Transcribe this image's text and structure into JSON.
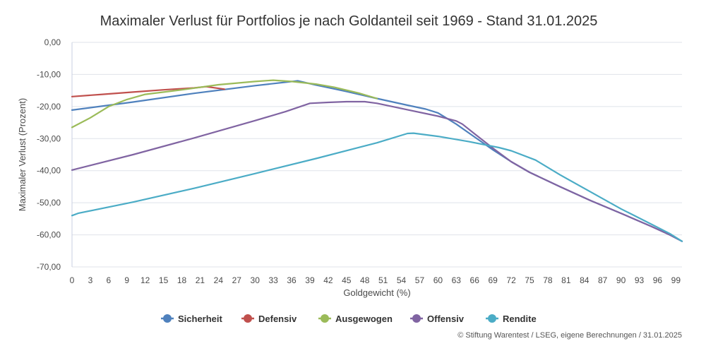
{
  "chart_data": {
    "type": "line",
    "title": "Maximaler Verlust für Portfolios je nach Goldanteil seit 1969 - Stand 31.01.2025",
    "xlabel": "Goldgewicht (%)",
    "ylabel": "Maximaler Verlust (Prozent)",
    "xlim": [
      0,
      100
    ],
    "ylim": [
      -70,
      0
    ],
    "x_ticks": [
      0,
      3,
      6,
      9,
      12,
      15,
      18,
      21,
      24,
      27,
      30,
      33,
      36,
      39,
      42,
      45,
      48,
      51,
      54,
      57,
      60,
      63,
      66,
      69,
      72,
      75,
      78,
      81,
      84,
      87,
      90,
      93,
      96,
      99
    ],
    "y_ticks": [
      0,
      -10,
      -20,
      -30,
      -40,
      -50,
      -60,
      -70
    ],
    "y_tick_labels": [
      "0,00",
      "-10,00",
      "-20,00",
      "-30,00",
      "-40,00",
      "-50,00",
      "-60,00",
      "-70,00"
    ],
    "grid": true,
    "legend_position": "bottom",
    "series": [
      {
        "name": "Sicherheit",
        "color": "#4f81bd",
        "points": [
          [
            0,
            -21.1
          ],
          [
            10,
            -18.6
          ],
          [
            20,
            -15.9
          ],
          [
            30,
            -13.5
          ],
          [
            37,
            -12.0
          ],
          [
            40,
            -13.3
          ],
          [
            45,
            -15.3
          ],
          [
            50,
            -17.5
          ],
          [
            55,
            -19.6
          ],
          [
            58,
            -20.8
          ],
          [
            60,
            -22.0
          ],
          [
            63,
            -25.5
          ],
          [
            66,
            -29.5
          ],
          [
            69,
            -33.5
          ],
          [
            72,
            -37.2
          ],
          [
            75,
            -40.5
          ],
          [
            80,
            -45.0
          ],
          [
            85,
            -49.3
          ],
          [
            90,
            -53.3
          ],
          [
            95,
            -57.4
          ],
          [
            98,
            -60.0
          ],
          [
            100,
            -62.0
          ]
        ]
      },
      {
        "name": "Defensiv",
        "color": "#c0504d",
        "points": [
          [
            0,
            -16.9
          ],
          [
            5,
            -16.2
          ],
          [
            10,
            -15.5
          ],
          [
            15,
            -14.8
          ],
          [
            20,
            -14.2
          ],
          [
            22,
            -13.8
          ],
          [
            25,
            -14.6
          ]
        ]
      },
      {
        "name": "Ausgewogen",
        "color": "#9bbb59",
        "points": [
          [
            0,
            -26.5
          ],
          [
            3,
            -23.5
          ],
          [
            6,
            -20.0
          ],
          [
            9,
            -17.8
          ],
          [
            12,
            -16.2
          ],
          [
            18,
            -14.8
          ],
          [
            24,
            -13.2
          ],
          [
            30,
            -12.2
          ],
          [
            33,
            -11.8
          ],
          [
            36,
            -12.2
          ],
          [
            40,
            -13.0
          ],
          [
            43,
            -14.0
          ],
          [
            47,
            -15.8
          ],
          [
            50,
            -17.5
          ]
        ]
      },
      {
        "name": "Offensiv",
        "color": "#8064a2",
        "points": [
          [
            0,
            -39.8
          ],
          [
            10,
            -35.0
          ],
          [
            20,
            -29.8
          ],
          [
            30,
            -24.4
          ],
          [
            35,
            -21.6
          ],
          [
            39,
            -19.0
          ],
          [
            42,
            -18.7
          ],
          [
            45,
            -18.5
          ],
          [
            48,
            -18.5
          ],
          [
            50,
            -19.0
          ],
          [
            55,
            -21.0
          ],
          [
            60,
            -23.0
          ],
          [
            63,
            -24.5
          ],
          [
            64,
            -25.5
          ],
          [
            66,
            -28.5
          ],
          [
            69,
            -33.0
          ],
          [
            72,
            -37.2
          ],
          [
            75,
            -40.5
          ],
          [
            80,
            -45.0
          ],
          [
            85,
            -49.3
          ],
          [
            90,
            -53.3
          ],
          [
            95,
            -57.4
          ],
          [
            98,
            -60.0
          ],
          [
            100,
            -62.0
          ]
        ]
      },
      {
        "name": "Rendite",
        "color": "#4bacc6",
        "points": [
          [
            0,
            -54.0
          ],
          [
            1,
            -53.3
          ],
          [
            10,
            -49.8
          ],
          [
            20,
            -45.5
          ],
          [
            30,
            -40.9
          ],
          [
            40,
            -36.2
          ],
          [
            50,
            -31.3
          ],
          [
            55,
            -28.4
          ],
          [
            56,
            -28.3
          ],
          [
            60,
            -29.3
          ],
          [
            65,
            -30.9
          ],
          [
            70,
            -32.8
          ],
          [
            72,
            -33.8
          ],
          [
            76,
            -36.7
          ],
          [
            80,
            -41.3
          ],
          [
            85,
            -46.6
          ],
          [
            90,
            -51.9
          ],
          [
            95,
            -56.7
          ],
          [
            98,
            -59.6
          ],
          [
            100,
            -62.0
          ]
        ]
      }
    ]
  },
  "source_note": "© Stiftung Warentest / LSEG, eigene Berechnungen / 31.01.2025"
}
